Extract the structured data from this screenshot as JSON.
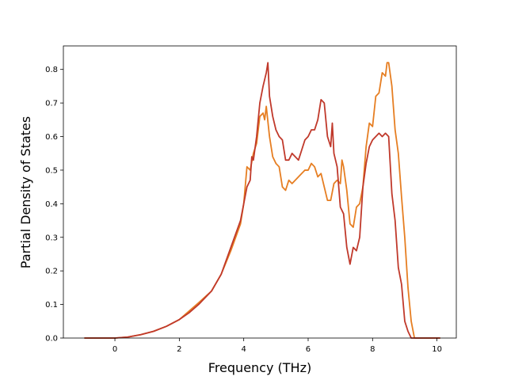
{
  "chart_data": {
    "type": "line",
    "xlabel": "Frequency (THz)",
    "ylabel": "Partial Density of States",
    "xlim": [
      -1.6,
      10.6
    ],
    "ylim": [
      0,
      0.87
    ],
    "xticks": [
      0,
      2,
      4,
      6,
      8,
      10
    ],
    "yticks": [
      0.0,
      0.1,
      0.2,
      0.3,
      0.4,
      0.5,
      0.6,
      0.7,
      0.8
    ],
    "ytick_labels": [
      "0.0",
      "0.1",
      "0.2",
      "0.3",
      "0.4",
      "0.5",
      "0.6",
      "0.7",
      "0.8"
    ],
    "grid": false,
    "series": [
      {
        "color": "#e67e22",
        "x": [
          -0.95,
          0.0,
          0.4,
          0.8,
          1.2,
          1.6,
          2.0,
          2.3,
          2.6,
          3.0,
          3.3,
          3.6,
          3.9,
          4.0,
          4.1,
          4.2,
          4.3,
          4.4,
          4.5,
          4.6,
          4.65,
          4.7,
          4.8,
          4.9,
          5.0,
          5.1,
          5.2,
          5.3,
          5.4,
          5.5,
          5.6,
          5.7,
          5.8,
          5.9,
          6.0,
          6.1,
          6.2,
          6.3,
          6.4,
          6.5,
          6.6,
          6.7,
          6.8,
          6.9,
          7.0,
          7.05,
          7.1,
          7.2,
          7.3,
          7.4,
          7.5,
          7.6,
          7.7,
          7.8,
          7.9,
          8.0,
          8.1,
          8.2,
          8.3,
          8.4,
          8.45,
          8.5,
          8.6,
          8.7,
          8.8,
          8.9,
          9.0,
          9.1,
          9.2,
          9.3,
          10.1
        ],
        "y": [
          0.0,
          0.0,
          0.003,
          0.01,
          0.02,
          0.035,
          0.055,
          0.08,
          0.105,
          0.14,
          0.19,
          0.26,
          0.34,
          0.4,
          0.51,
          0.5,
          0.55,
          0.58,
          0.66,
          0.67,
          0.65,
          0.69,
          0.6,
          0.54,
          0.52,
          0.51,
          0.45,
          0.44,
          0.47,
          0.46,
          0.47,
          0.48,
          0.49,
          0.5,
          0.5,
          0.52,
          0.51,
          0.48,
          0.49,
          0.45,
          0.41,
          0.41,
          0.46,
          0.47,
          0.46,
          0.53,
          0.51,
          0.44,
          0.34,
          0.33,
          0.39,
          0.4,
          0.45,
          0.57,
          0.64,
          0.63,
          0.72,
          0.73,
          0.79,
          0.78,
          0.82,
          0.82,
          0.75,
          0.62,
          0.55,
          0.42,
          0.3,
          0.15,
          0.05,
          0.0,
          0.0
        ]
      },
      {
        "color": "#c0392b",
        "x": [
          -0.95,
          0.0,
          0.4,
          0.8,
          1.2,
          1.6,
          2.0,
          2.3,
          2.6,
          3.0,
          3.3,
          3.6,
          3.9,
          4.0,
          4.1,
          4.2,
          4.25,
          4.3,
          4.4,
          4.5,
          4.6,
          4.7,
          4.75,
          4.8,
          4.9,
          5.0,
          5.1,
          5.2,
          5.3,
          5.4,
          5.5,
          5.6,
          5.7,
          5.8,
          5.9,
          6.0,
          6.1,
          6.2,
          6.3,
          6.4,
          6.5,
          6.6,
          6.7,
          6.75,
          6.8,
          6.9,
          7.0,
          7.1,
          7.2,
          7.3,
          7.4,
          7.5,
          7.6,
          7.7,
          7.8,
          7.9,
          8.0,
          8.1,
          8.2,
          8.3,
          8.4,
          8.5,
          8.6,
          8.7,
          8.8,
          8.9,
          9.0,
          9.1,
          9.2,
          10.1
        ],
        "y": [
          0.0,
          0.0,
          0.003,
          0.01,
          0.02,
          0.035,
          0.055,
          0.075,
          0.1,
          0.14,
          0.19,
          0.27,
          0.35,
          0.4,
          0.45,
          0.47,
          0.54,
          0.53,
          0.6,
          0.7,
          0.75,
          0.79,
          0.82,
          0.72,
          0.66,
          0.62,
          0.6,
          0.59,
          0.53,
          0.53,
          0.55,
          0.54,
          0.53,
          0.56,
          0.59,
          0.6,
          0.62,
          0.62,
          0.65,
          0.71,
          0.7,
          0.6,
          0.57,
          0.64,
          0.55,
          0.51,
          0.39,
          0.37,
          0.27,
          0.22,
          0.27,
          0.26,
          0.3,
          0.45,
          0.52,
          0.57,
          0.59,
          0.6,
          0.61,
          0.6,
          0.61,
          0.6,
          0.43,
          0.35,
          0.21,
          0.16,
          0.05,
          0.02,
          0.0,
          0.0
        ]
      }
    ]
  }
}
